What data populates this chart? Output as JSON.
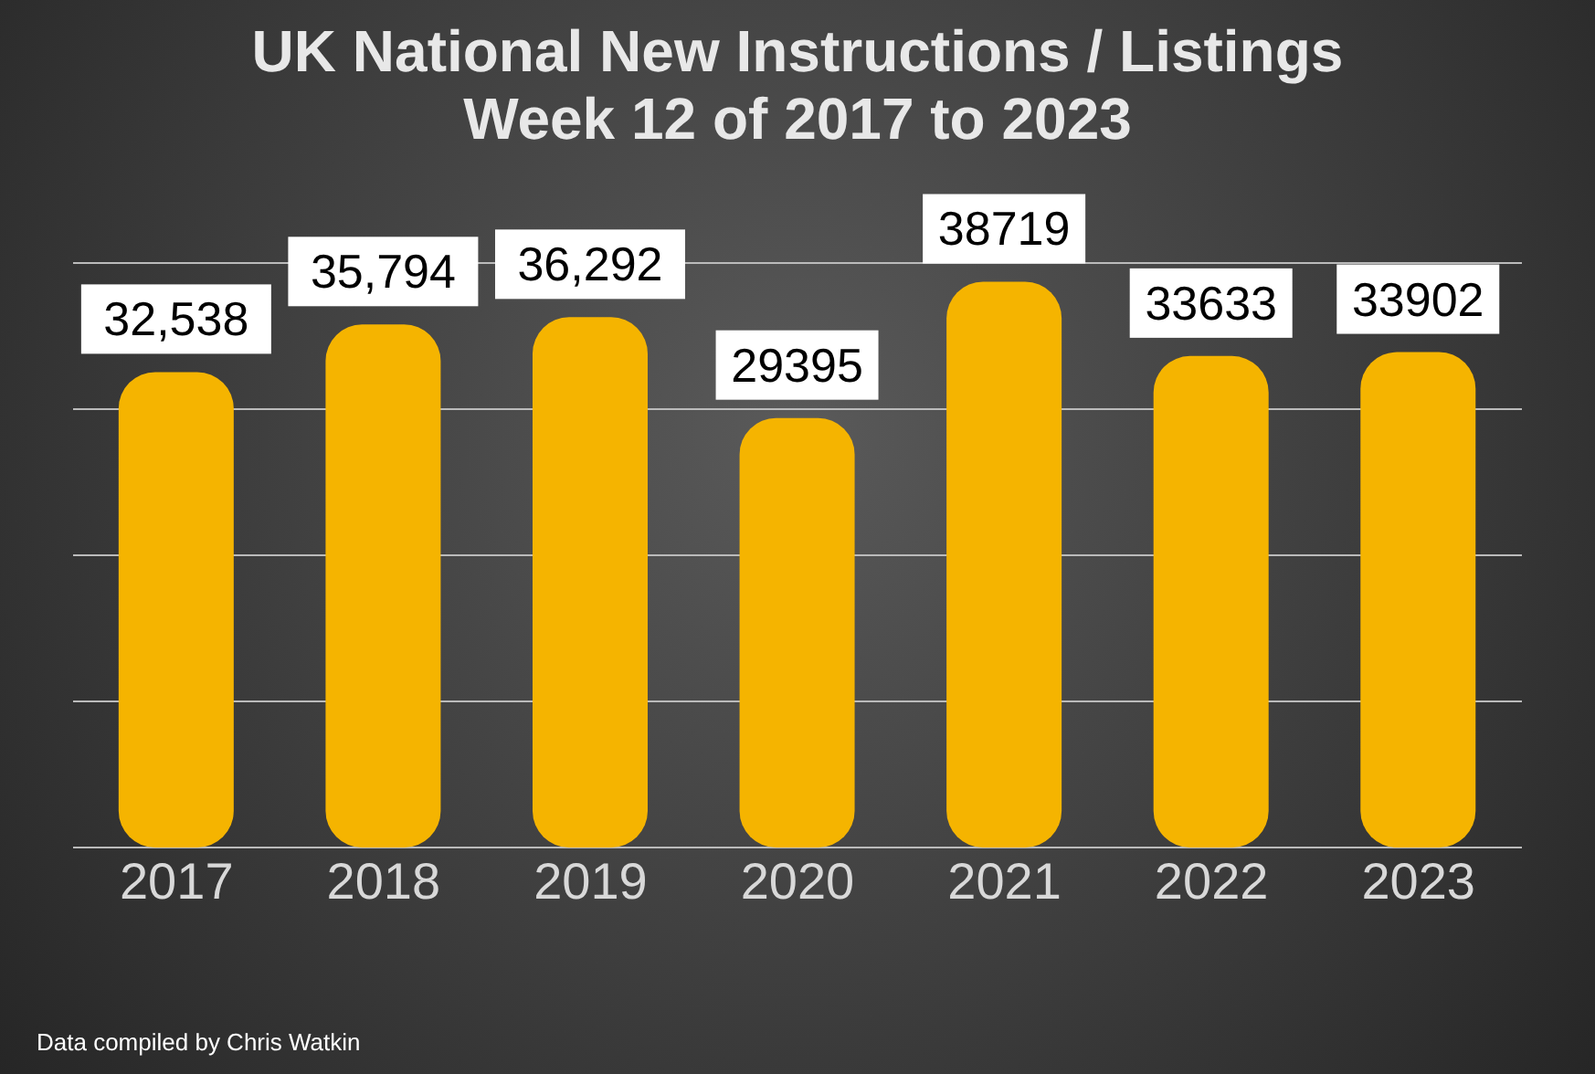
{
  "chart_data": {
    "type": "bar",
    "title": "UK National New Instructions / Listings",
    "subtitle": "Week 12 of 2017 to 2023",
    "categories": [
      "2017",
      "2018",
      "2019",
      "2020",
      "2021",
      "2022",
      "2023"
    ],
    "values": [
      32538,
      35794,
      36292,
      29395,
      38719,
      33633,
      33902
    ],
    "value_labels": [
      "32,538",
      "35,794",
      "36,292",
      "29395",
      "38719",
      "33633",
      "33902"
    ],
    "color": "#f5b400",
    "grid": "y",
    "tick_labels": "x",
    "annotations": [
      "Data compiled by Chris Watkin"
    ]
  }
}
